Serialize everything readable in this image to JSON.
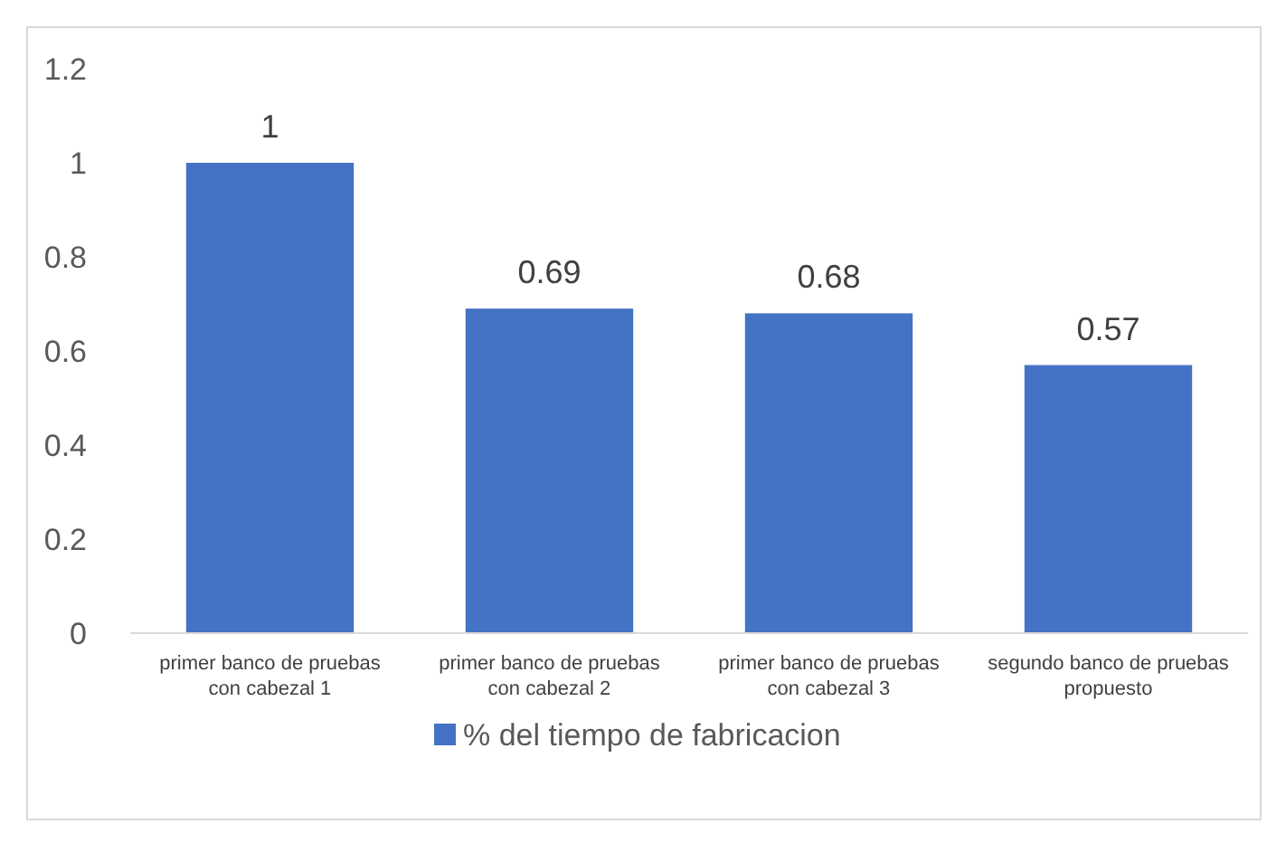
{
  "chart_data": {
    "type": "bar",
    "categories": [
      "primer banco de pruebas con cabezal 1",
      "primer banco de pruebas con cabezal 2",
      "primer banco de pruebas con cabezal 3",
      "segundo banco de pruebas propuesto"
    ],
    "series": [
      {
        "name": "% del tiempo de fabricacion",
        "color": "#4472c4",
        "values": [
          1,
          0.69,
          0.68,
          0.57
        ]
      }
    ],
    "ylim": [
      0,
      1.2
    ],
    "yticks": [
      0,
      0.2,
      0.4,
      0.6,
      0.8,
      1,
      1.2
    ],
    "data_labels": true,
    "grid": false,
    "legend": "bottom"
  }
}
